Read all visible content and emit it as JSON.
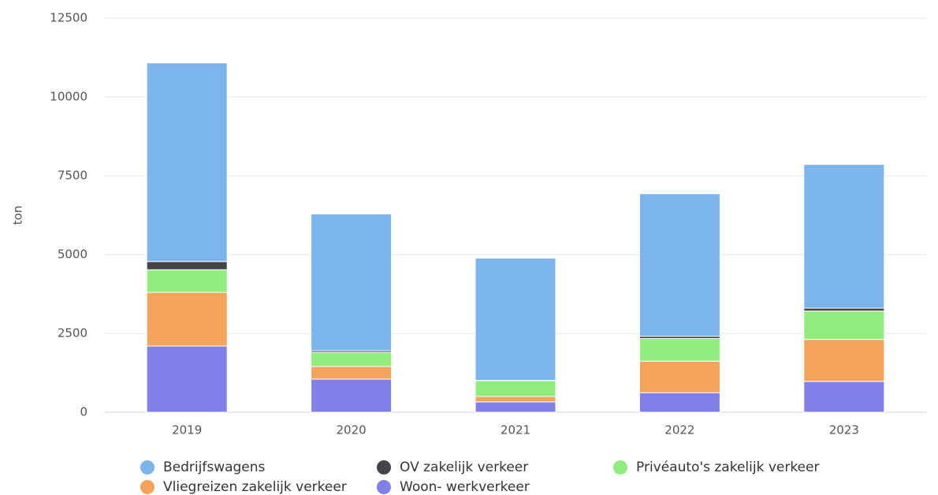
{
  "chart_data": {
    "type": "bar",
    "stacked": true,
    "title": "",
    "xlabel": "",
    "ylabel": "ton",
    "ylim": [
      0,
      12500
    ],
    "yticks": [
      0,
      2500,
      5000,
      7500,
      10000,
      12500
    ],
    "categories": [
      "2019",
      "2020",
      "2021",
      "2022",
      "2023"
    ],
    "series": [
      {
        "name": "Woon- werkverkeer",
        "color": "#8080e8",
        "values": [
          2100,
          1050,
          330,
          620,
          980
        ]
      },
      {
        "name": "Vliegreizen zakelijk verkeer",
        "color": "#f5a25a",
        "values": [
          1700,
          400,
          170,
          1000,
          1330
        ]
      },
      {
        "name": "Privéauto's zakelijk verkeer",
        "color": "#90ec7d",
        "values": [
          720,
          450,
          500,
          720,
          900
        ]
      },
      {
        "name": "OV zakelijk verkeer",
        "color": "#434348",
        "values": [
          260,
          50,
          10,
          70,
          90
        ]
      },
      {
        "name": "Bedrijfswagens",
        "color": "#7cb4ec",
        "values": [
          6300,
          4340,
          3880,
          4520,
          4560
        ]
      }
    ],
    "grid": true,
    "legend_position": "bottom"
  },
  "legend_order": [
    "Bedrijfswagens",
    "OV zakelijk verkeer",
    "Privéauto's zakelijk verkeer",
    "Vliegreizen zakelijk verkeer",
    "Woon- werkverkeer"
  ]
}
